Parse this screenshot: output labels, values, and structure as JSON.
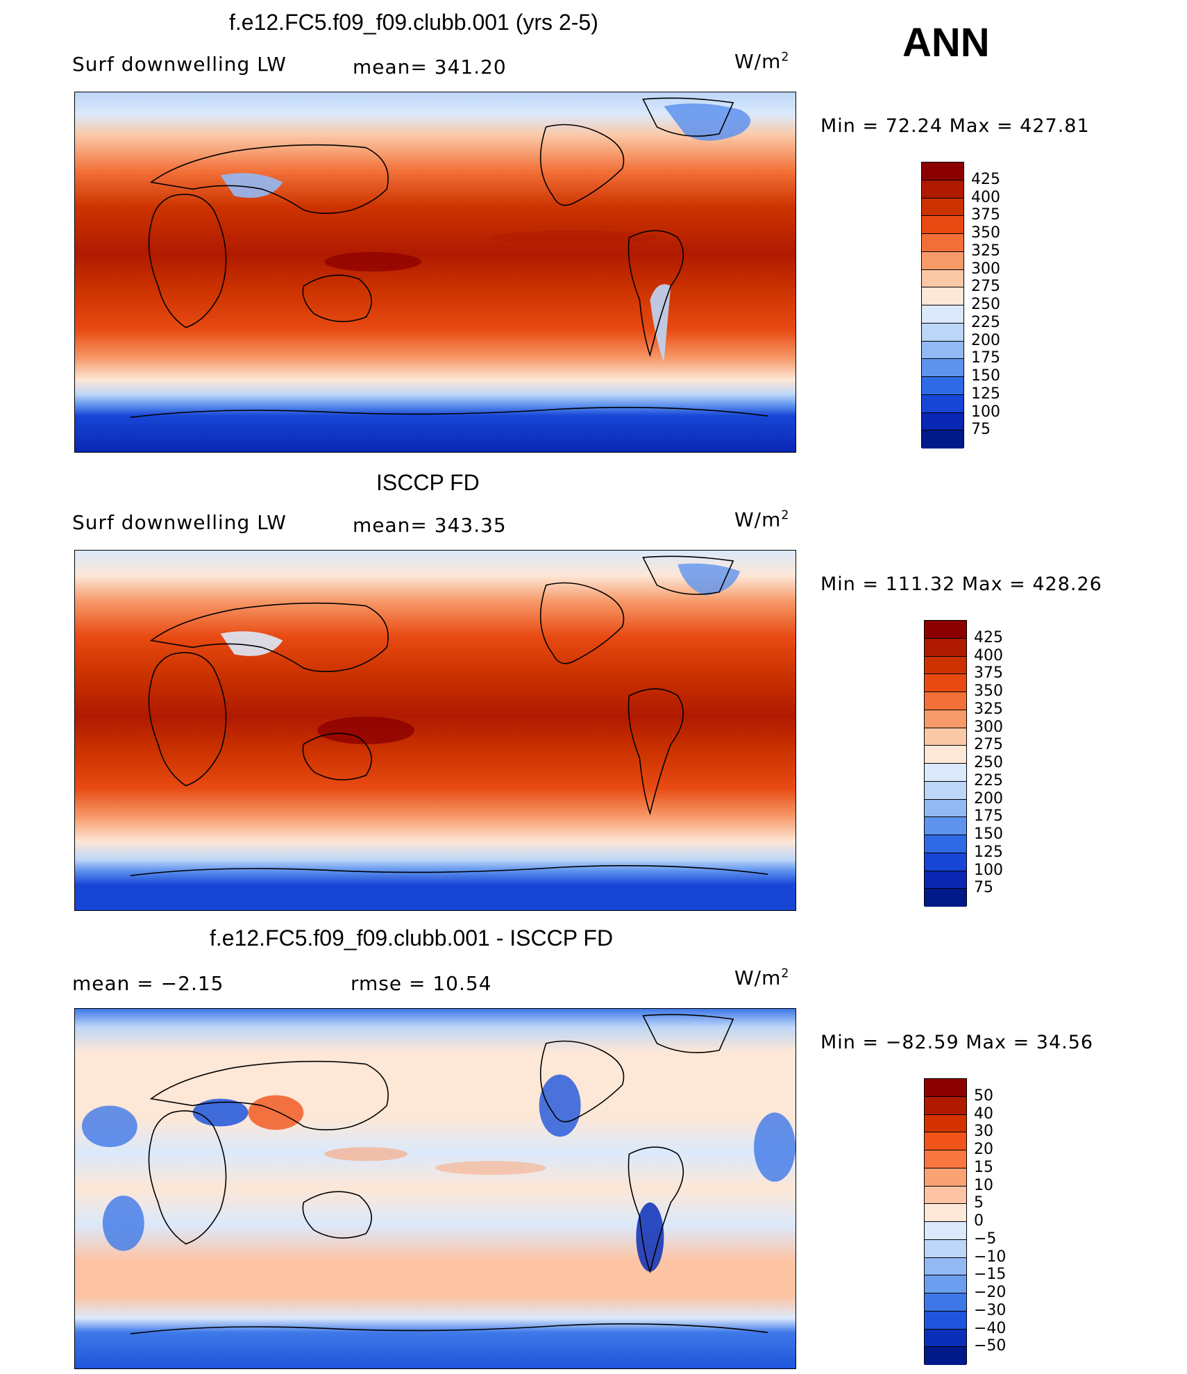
{
  "season": "ANN",
  "panels": [
    {
      "title": "f.e12.FC5.f09_f09.clubb.001 (yrs 2-5)",
      "left_label": "Surf downwelling LW",
      "center_label": "mean= 341.20",
      "units": "W/m",
      "units_exp": "2",
      "minmax": "Min =  72.24 Max = 427.81",
      "colorbar_ticks": [
        "425",
        "400",
        "375",
        "350",
        "325",
        "300",
        "275",
        "250",
        "225",
        "200",
        "175",
        "150",
        "125",
        "100",
        "75"
      ]
    },
    {
      "title": "ISCCP FD",
      "left_label": "Surf downwelling LW",
      "center_label": "mean= 343.35",
      "units": "W/m",
      "units_exp": "2",
      "minmax": "Min = 111.32 Max = 428.26",
      "colorbar_ticks": [
        "425",
        "400",
        "375",
        "350",
        "325",
        "300",
        "275",
        "250",
        "225",
        "200",
        "175",
        "150",
        "125",
        "100",
        "75"
      ]
    },
    {
      "title": "f.e12.FC5.f09_f09.clubb.001 - ISCCP FD",
      "left_label": "mean =   −2.15",
      "center_label": "rmse =   10.54",
      "units": "W/m",
      "units_exp": "2",
      "minmax": "Min = −82.59 Max =  34.56",
      "colorbar_ticks": [
        "50",
        "40",
        "30",
        "20",
        "15",
        "10",
        "5",
        "0",
        "−5",
        "−10",
        "−15",
        "−20",
        "−30",
        "−40",
        "−50"
      ]
    }
  ],
  "colors": {
    "abs_scale": [
      "#8c0000",
      "#b01a00",
      "#cc3300",
      "#e84a12",
      "#f27038",
      "#f79a6a",
      "#fbc8a6",
      "#fde7d6",
      "#dbe9fb",
      "#bcd6f8",
      "#93b9f5",
      "#5f93ee",
      "#2f6ae6",
      "#1745d6",
      "#0a27b4",
      "#001a8a"
    ],
    "diff_scale": [
      "#8c0000",
      "#b01a00",
      "#d43300",
      "#f05418",
      "#f8773e",
      "#fba274",
      "#fdc4a4",
      "#fde7d6",
      "#dbe9fb",
      "#bcd6f8",
      "#93b9f5",
      "#6c9ef0",
      "#3e78e8",
      "#1e55dc",
      "#0a2fb8",
      "#001a8a"
    ]
  }
}
